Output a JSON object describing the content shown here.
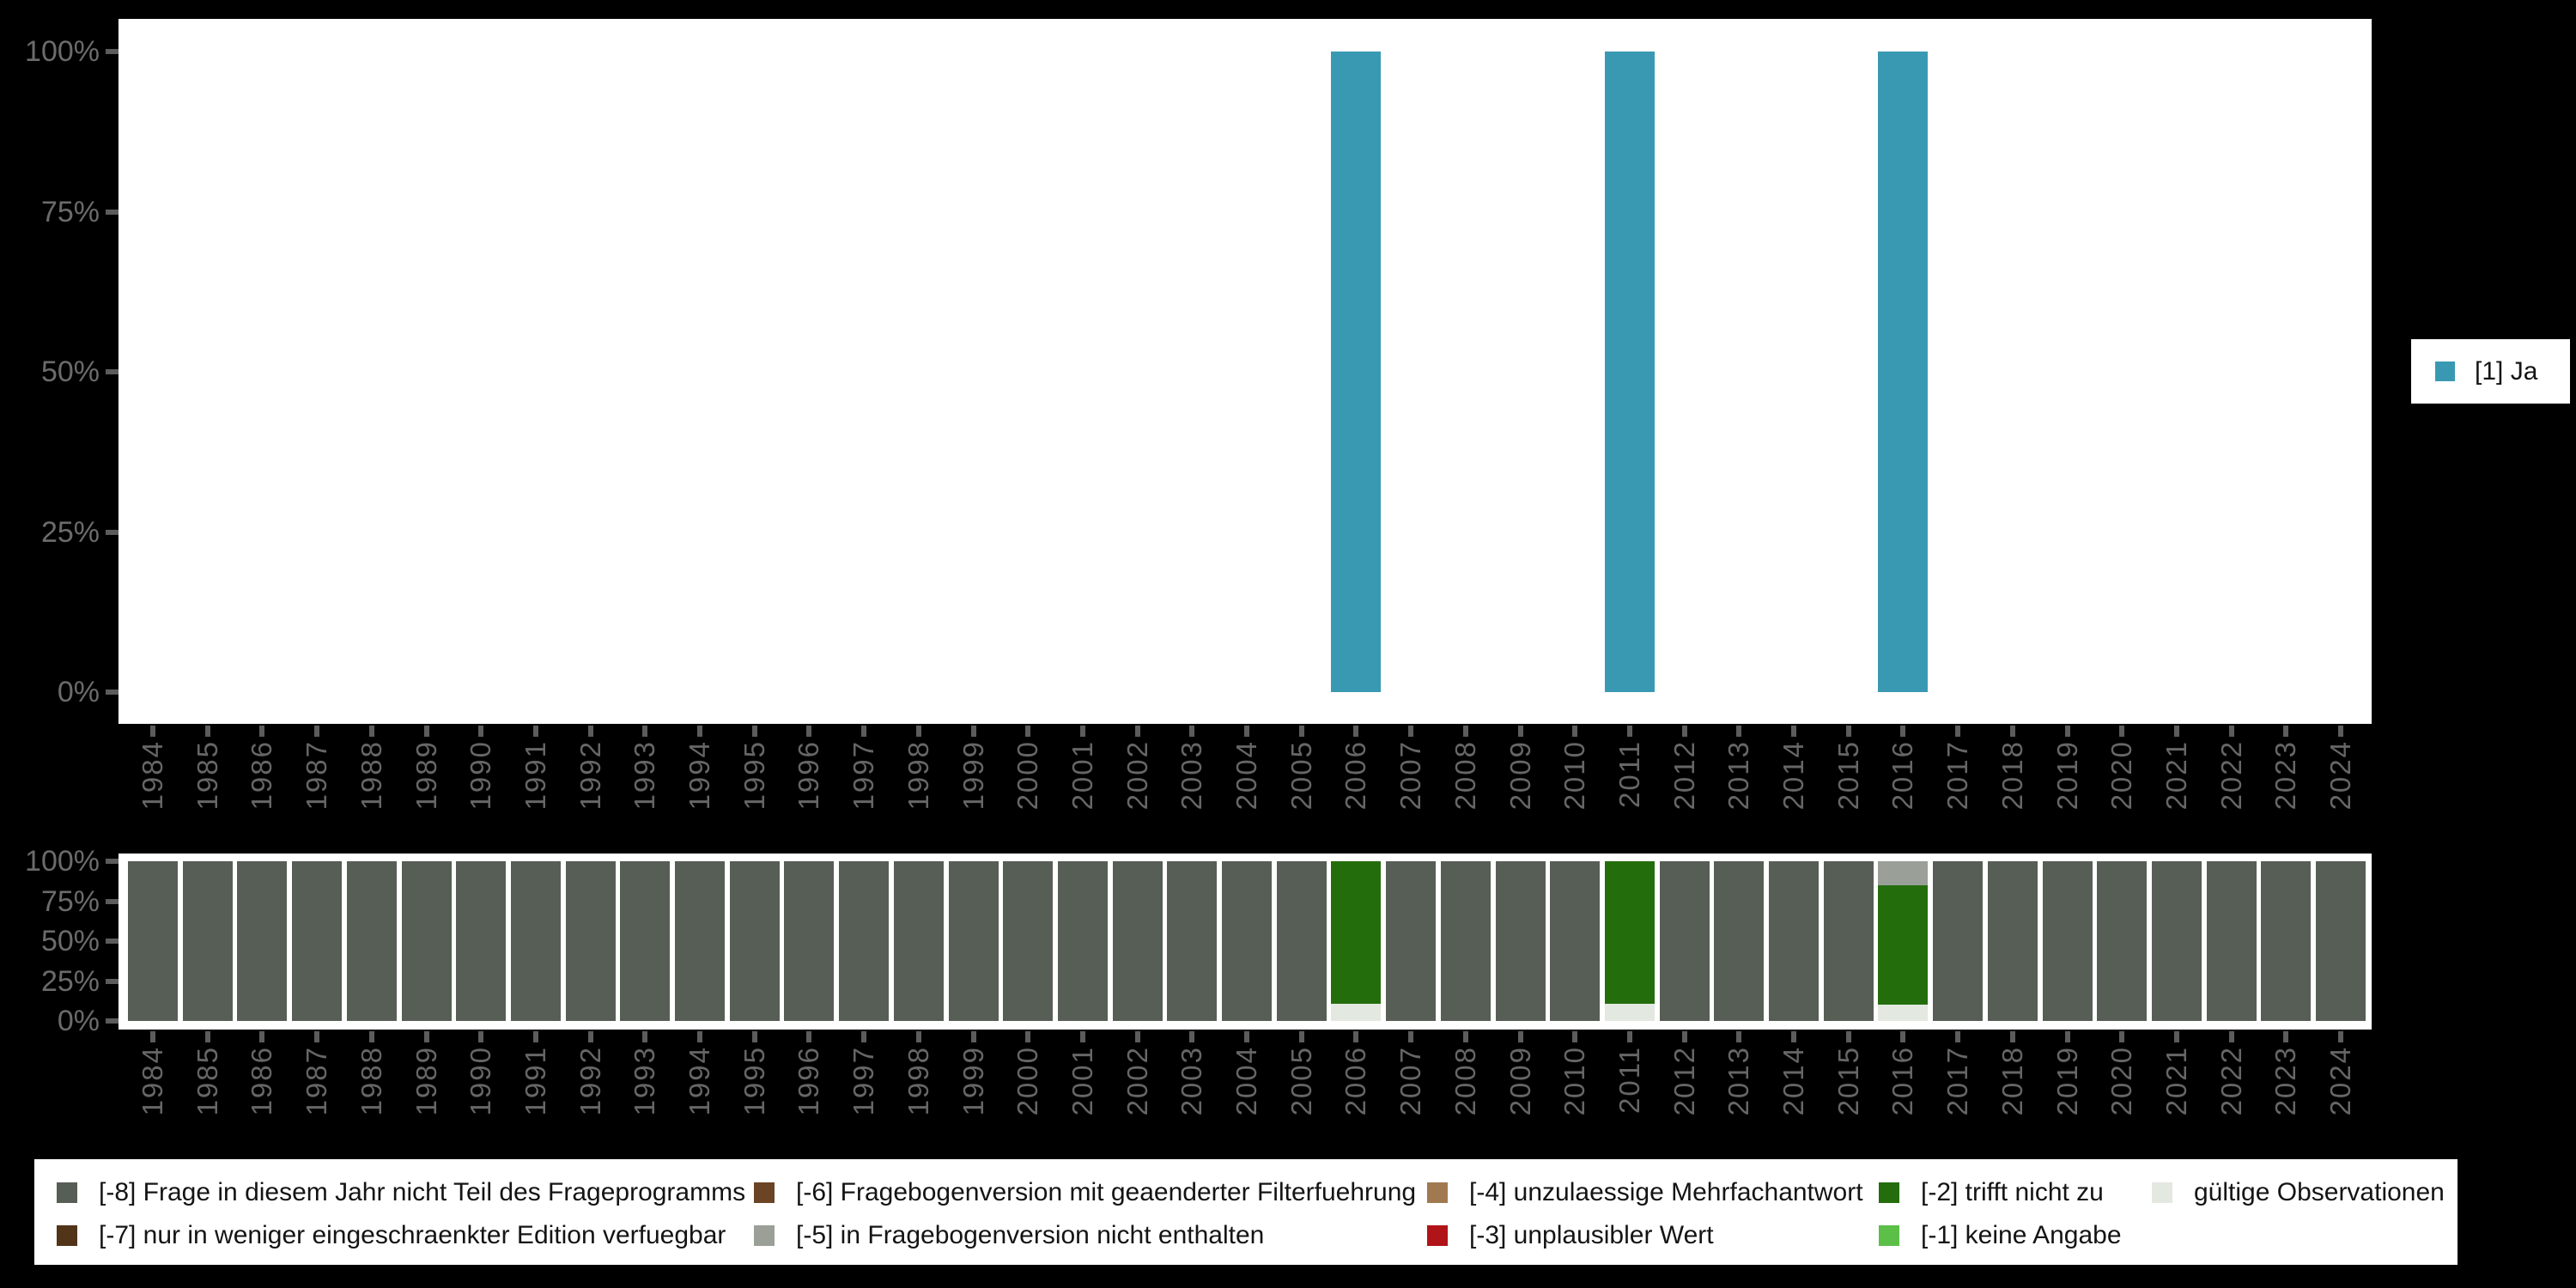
{
  "colors": {
    "background": "#000000",
    "plot_background": "#FFFFFF",
    "axis_text": "#6B6B6B",
    "tick": "#5C5C5C",
    "legend_text": "#141414"
  },
  "legend_ja": {
    "label": "[1] Ja",
    "color": "#3A99B2"
  },
  "legend_missing": {
    "items": [
      {
        "code": "-8",
        "label": "[-8] Frage in diesem Jahr nicht Teil des Frageprogramms",
        "color": "#575E55",
        "col": 0,
        "row": 0
      },
      {
        "code": "-7",
        "label": "[-7] nur in weniger eingeschraenkter Edition verfuegbar",
        "color": "#523419",
        "col": 0,
        "row": 1
      },
      {
        "code": "-6",
        "label": "[-6] Fragebogenversion mit geaenderter Filterfuehrung",
        "color": "#6B4425",
        "col": 1,
        "row": 0
      },
      {
        "code": "-5",
        "label": "[-5] in Fragebogenversion nicht enthalten",
        "color": "#9AA098",
        "col": 1,
        "row": 1
      },
      {
        "code": "-4",
        "label": "[-4] unzulaessige Mehrfachantwort",
        "color": "#A17950",
        "col": 2,
        "row": 0
      },
      {
        "code": "-3",
        "label": "[-3] unplausibler Wert",
        "color": "#B01418",
        "col": 2,
        "row": 1
      },
      {
        "code": "-2",
        "label": "[-2] trifft nicht zu",
        "color": "#246D0D",
        "col": 3,
        "row": 0
      },
      {
        "code": "-1",
        "label": "[-1] keine Angabe",
        "color": "#5BBF48",
        "col": 3,
        "row": 1
      },
      {
        "code": "valid",
        "label": "gültige Observationen",
        "color": "#E3E8E0",
        "col": 4,
        "row": 0
      }
    ]
  },
  "chart_data": [
    {
      "type": "bar",
      "title": "",
      "xlabel": "",
      "ylabel": "",
      "ylim": [
        0,
        100
      ],
      "y_ticks": [
        "100%",
        "75%",
        "50%",
        "25%",
        "0%"
      ],
      "y_tick_values": [
        100,
        75,
        50,
        25,
        0
      ],
      "grid": false,
      "legend_position": "right",
      "categories": [
        "1984",
        "1985",
        "1986",
        "1987",
        "1988",
        "1989",
        "1990",
        "1991",
        "1992",
        "1993",
        "1994",
        "1995",
        "1996",
        "1997",
        "1998",
        "1999",
        "2000",
        "2001",
        "2002",
        "2003",
        "2004",
        "2005",
        "2006",
        "2007",
        "2008",
        "2009",
        "2010",
        "2011",
        "2012",
        "2013",
        "2014",
        "2015",
        "2016",
        "2017",
        "2018",
        "2019",
        "2020",
        "2021",
        "2022",
        "2023",
        "2024"
      ],
      "series": [
        {
          "name": "[1] Ja",
          "color": "#3A99B2",
          "values": [
            null,
            null,
            null,
            null,
            null,
            null,
            null,
            null,
            null,
            null,
            null,
            null,
            null,
            null,
            null,
            null,
            null,
            null,
            null,
            null,
            null,
            null,
            100,
            null,
            null,
            null,
            null,
            100,
            null,
            null,
            null,
            null,
            100,
            null,
            null,
            null,
            null,
            null,
            null,
            null,
            null
          ]
        }
      ]
    },
    {
      "type": "stacked-bar",
      "unit": "percent",
      "title": "",
      "ylim": [
        0,
        100
      ],
      "y_ticks": [
        "100%",
        "75%",
        "50%",
        "25%",
        "0%"
      ],
      "y_tick_values": [
        100,
        75,
        50,
        25,
        0
      ],
      "grid": false,
      "legend_position": "bottom",
      "categories": [
        "1984",
        "1985",
        "1986",
        "1987",
        "1988",
        "1989",
        "1990",
        "1991",
        "1992",
        "1993",
        "1994",
        "1995",
        "1996",
        "1997",
        "1998",
        "1999",
        "2000",
        "2001",
        "2002",
        "2003",
        "2004",
        "2005",
        "2006",
        "2007",
        "2008",
        "2009",
        "2010",
        "2011",
        "2012",
        "2013",
        "2014",
        "2015",
        "2016",
        "2017",
        "2018",
        "2019",
        "2020",
        "2021",
        "2022",
        "2023",
        "2024"
      ],
      "bars": [
        {
          "year": "1984",
          "segments": [
            {
              "code": "-8",
              "pct": 100
            }
          ]
        },
        {
          "year": "1985",
          "segments": [
            {
              "code": "-8",
              "pct": 100
            }
          ]
        },
        {
          "year": "1986",
          "segments": [
            {
              "code": "-8",
              "pct": 100
            }
          ]
        },
        {
          "year": "1987",
          "segments": [
            {
              "code": "-8",
              "pct": 100
            }
          ]
        },
        {
          "year": "1988",
          "segments": [
            {
              "code": "-8",
              "pct": 100
            }
          ]
        },
        {
          "year": "1989",
          "segments": [
            {
              "code": "-8",
              "pct": 100
            }
          ]
        },
        {
          "year": "1990",
          "segments": [
            {
              "code": "-8",
              "pct": 100
            }
          ]
        },
        {
          "year": "1991",
          "segments": [
            {
              "code": "-8",
              "pct": 100
            }
          ]
        },
        {
          "year": "1992",
          "segments": [
            {
              "code": "-8",
              "pct": 100
            }
          ]
        },
        {
          "year": "1993",
          "segments": [
            {
              "code": "-8",
              "pct": 100
            }
          ]
        },
        {
          "year": "1994",
          "segments": [
            {
              "code": "-8",
              "pct": 100
            }
          ]
        },
        {
          "year": "1995",
          "segments": [
            {
              "code": "-8",
              "pct": 100
            }
          ]
        },
        {
          "year": "1996",
          "segments": [
            {
              "code": "-8",
              "pct": 100
            }
          ]
        },
        {
          "year": "1997",
          "segments": [
            {
              "code": "-8",
              "pct": 100
            }
          ]
        },
        {
          "year": "1998",
          "segments": [
            {
              "code": "-8",
              "pct": 100
            }
          ]
        },
        {
          "year": "1999",
          "segments": [
            {
              "code": "-8",
              "pct": 100
            }
          ]
        },
        {
          "year": "2000",
          "segments": [
            {
              "code": "-8",
              "pct": 100
            }
          ]
        },
        {
          "year": "2001",
          "segments": [
            {
              "code": "-8",
              "pct": 100
            }
          ]
        },
        {
          "year": "2002",
          "segments": [
            {
              "code": "-8",
              "pct": 100
            }
          ]
        },
        {
          "year": "2003",
          "segments": [
            {
              "code": "-8",
              "pct": 100
            }
          ]
        },
        {
          "year": "2004",
          "segments": [
            {
              "code": "-8",
              "pct": 100
            }
          ]
        },
        {
          "year": "2005",
          "segments": [
            {
              "code": "-8",
              "pct": 100
            }
          ]
        },
        {
          "year": "2006",
          "segments": [
            {
              "code": "-2",
              "pct": 89
            },
            {
              "code": "valid",
              "pct": 11
            }
          ]
        },
        {
          "year": "2007",
          "segments": [
            {
              "code": "-8",
              "pct": 100
            }
          ]
        },
        {
          "year": "2008",
          "segments": [
            {
              "code": "-8",
              "pct": 100
            }
          ]
        },
        {
          "year": "2009",
          "segments": [
            {
              "code": "-8",
              "pct": 100
            }
          ]
        },
        {
          "year": "2010",
          "segments": [
            {
              "code": "-8",
              "pct": 100
            }
          ]
        },
        {
          "year": "2011",
          "segments": [
            {
              "code": "-2",
              "pct": 89
            },
            {
              "code": "valid",
              "pct": 11
            }
          ]
        },
        {
          "year": "2012",
          "segments": [
            {
              "code": "-8",
              "pct": 100
            }
          ]
        },
        {
          "year": "2013",
          "segments": [
            {
              "code": "-8",
              "pct": 100
            }
          ]
        },
        {
          "year": "2014",
          "segments": [
            {
              "code": "-8",
              "pct": 100
            }
          ]
        },
        {
          "year": "2015",
          "segments": [
            {
              "code": "-8",
              "pct": 100
            }
          ]
        },
        {
          "year": "2016",
          "segments": [
            {
              "code": "-5",
              "pct": 15
            },
            {
              "code": "-2",
              "pct": 75
            },
            {
              "code": "valid",
              "pct": 10
            }
          ]
        },
        {
          "year": "2017",
          "segments": [
            {
              "code": "-8",
              "pct": 100
            }
          ]
        },
        {
          "year": "2018",
          "segments": [
            {
              "code": "-8",
              "pct": 100
            }
          ]
        },
        {
          "year": "2019",
          "segments": [
            {
              "code": "-8",
              "pct": 100
            }
          ]
        },
        {
          "year": "2020",
          "segments": [
            {
              "code": "-8",
              "pct": 100
            }
          ]
        },
        {
          "year": "2021",
          "segments": [
            {
              "code": "-8",
              "pct": 100
            }
          ]
        },
        {
          "year": "2022",
          "segments": [
            {
              "code": "-8",
              "pct": 100
            }
          ]
        },
        {
          "year": "2023",
          "segments": [
            {
              "code": "-8",
              "pct": 100
            }
          ]
        },
        {
          "year": "2024",
          "segments": [
            {
              "code": "-8",
              "pct": 100
            }
          ]
        }
      ]
    }
  ]
}
